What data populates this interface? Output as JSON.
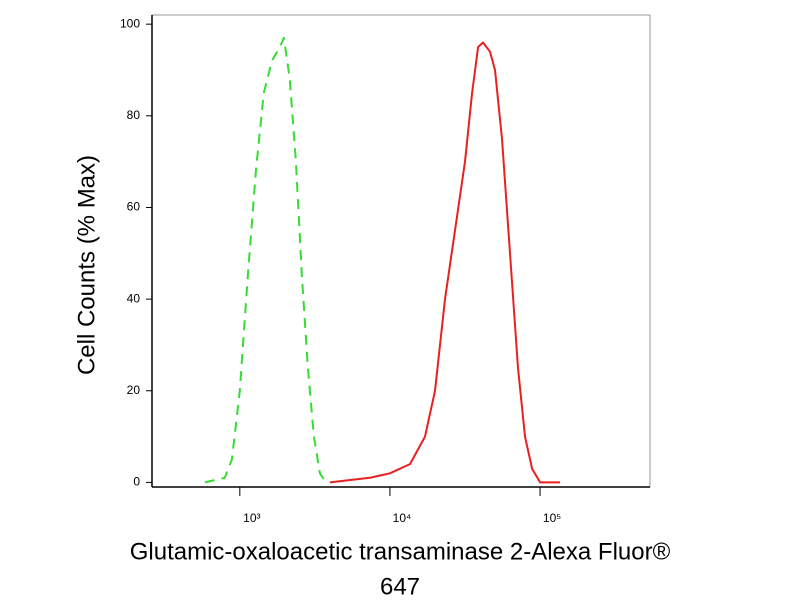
{
  "chart_data": {
    "type": "line",
    "ylabel": "Cell Counts (% Max)",
    "xlabel": [
      "Glutamic-oxaloacetic transaminase 2-Alexa Fluor®",
      "647"
    ],
    "xscale": "log",
    "xlim": [
      260,
      540000
    ],
    "ylim": [
      -1,
      102
    ],
    "xticks": [
      {
        "value": 1000,
        "label": "10³"
      },
      {
        "value": 10000,
        "label": "10⁴"
      },
      {
        "value": 100000,
        "label": "10⁵"
      }
    ],
    "yticks": [
      0,
      20,
      40,
      60,
      80,
      100
    ],
    "series": [
      {
        "color": "#33dd33",
        "dash": true,
        "x": [
          585,
          794,
          885,
          1000,
          1130,
          1280,
          1445,
          1635,
          1848,
          1965,
          2154,
          2362,
          2590,
          2840,
          3113,
          3414,
          3743
        ],
        "values": [
          0,
          1,
          5,
          20,
          45,
          68,
          85,
          92,
          95,
          97,
          88,
          70,
          45,
          25,
          10,
          2,
          0
        ]
      },
      {
        "color": "#e82020",
        "dash": false,
        "x": [
          3981,
          7356,
          10000,
          13594,
          17113,
          19953,
          23263,
          27123,
          31623,
          35237,
          38636,
          41687,
          46416,
          50119,
          55822,
          63096,
          71322,
          79433,
          88465,
          100000,
          135936
        ],
        "values": [
          0,
          1,
          2,
          4,
          10,
          20,
          40,
          55,
          70,
          85,
          95,
          96,
          94,
          90,
          75,
          50,
          25,
          10,
          3,
          0,
          0
        ]
      }
    ]
  }
}
